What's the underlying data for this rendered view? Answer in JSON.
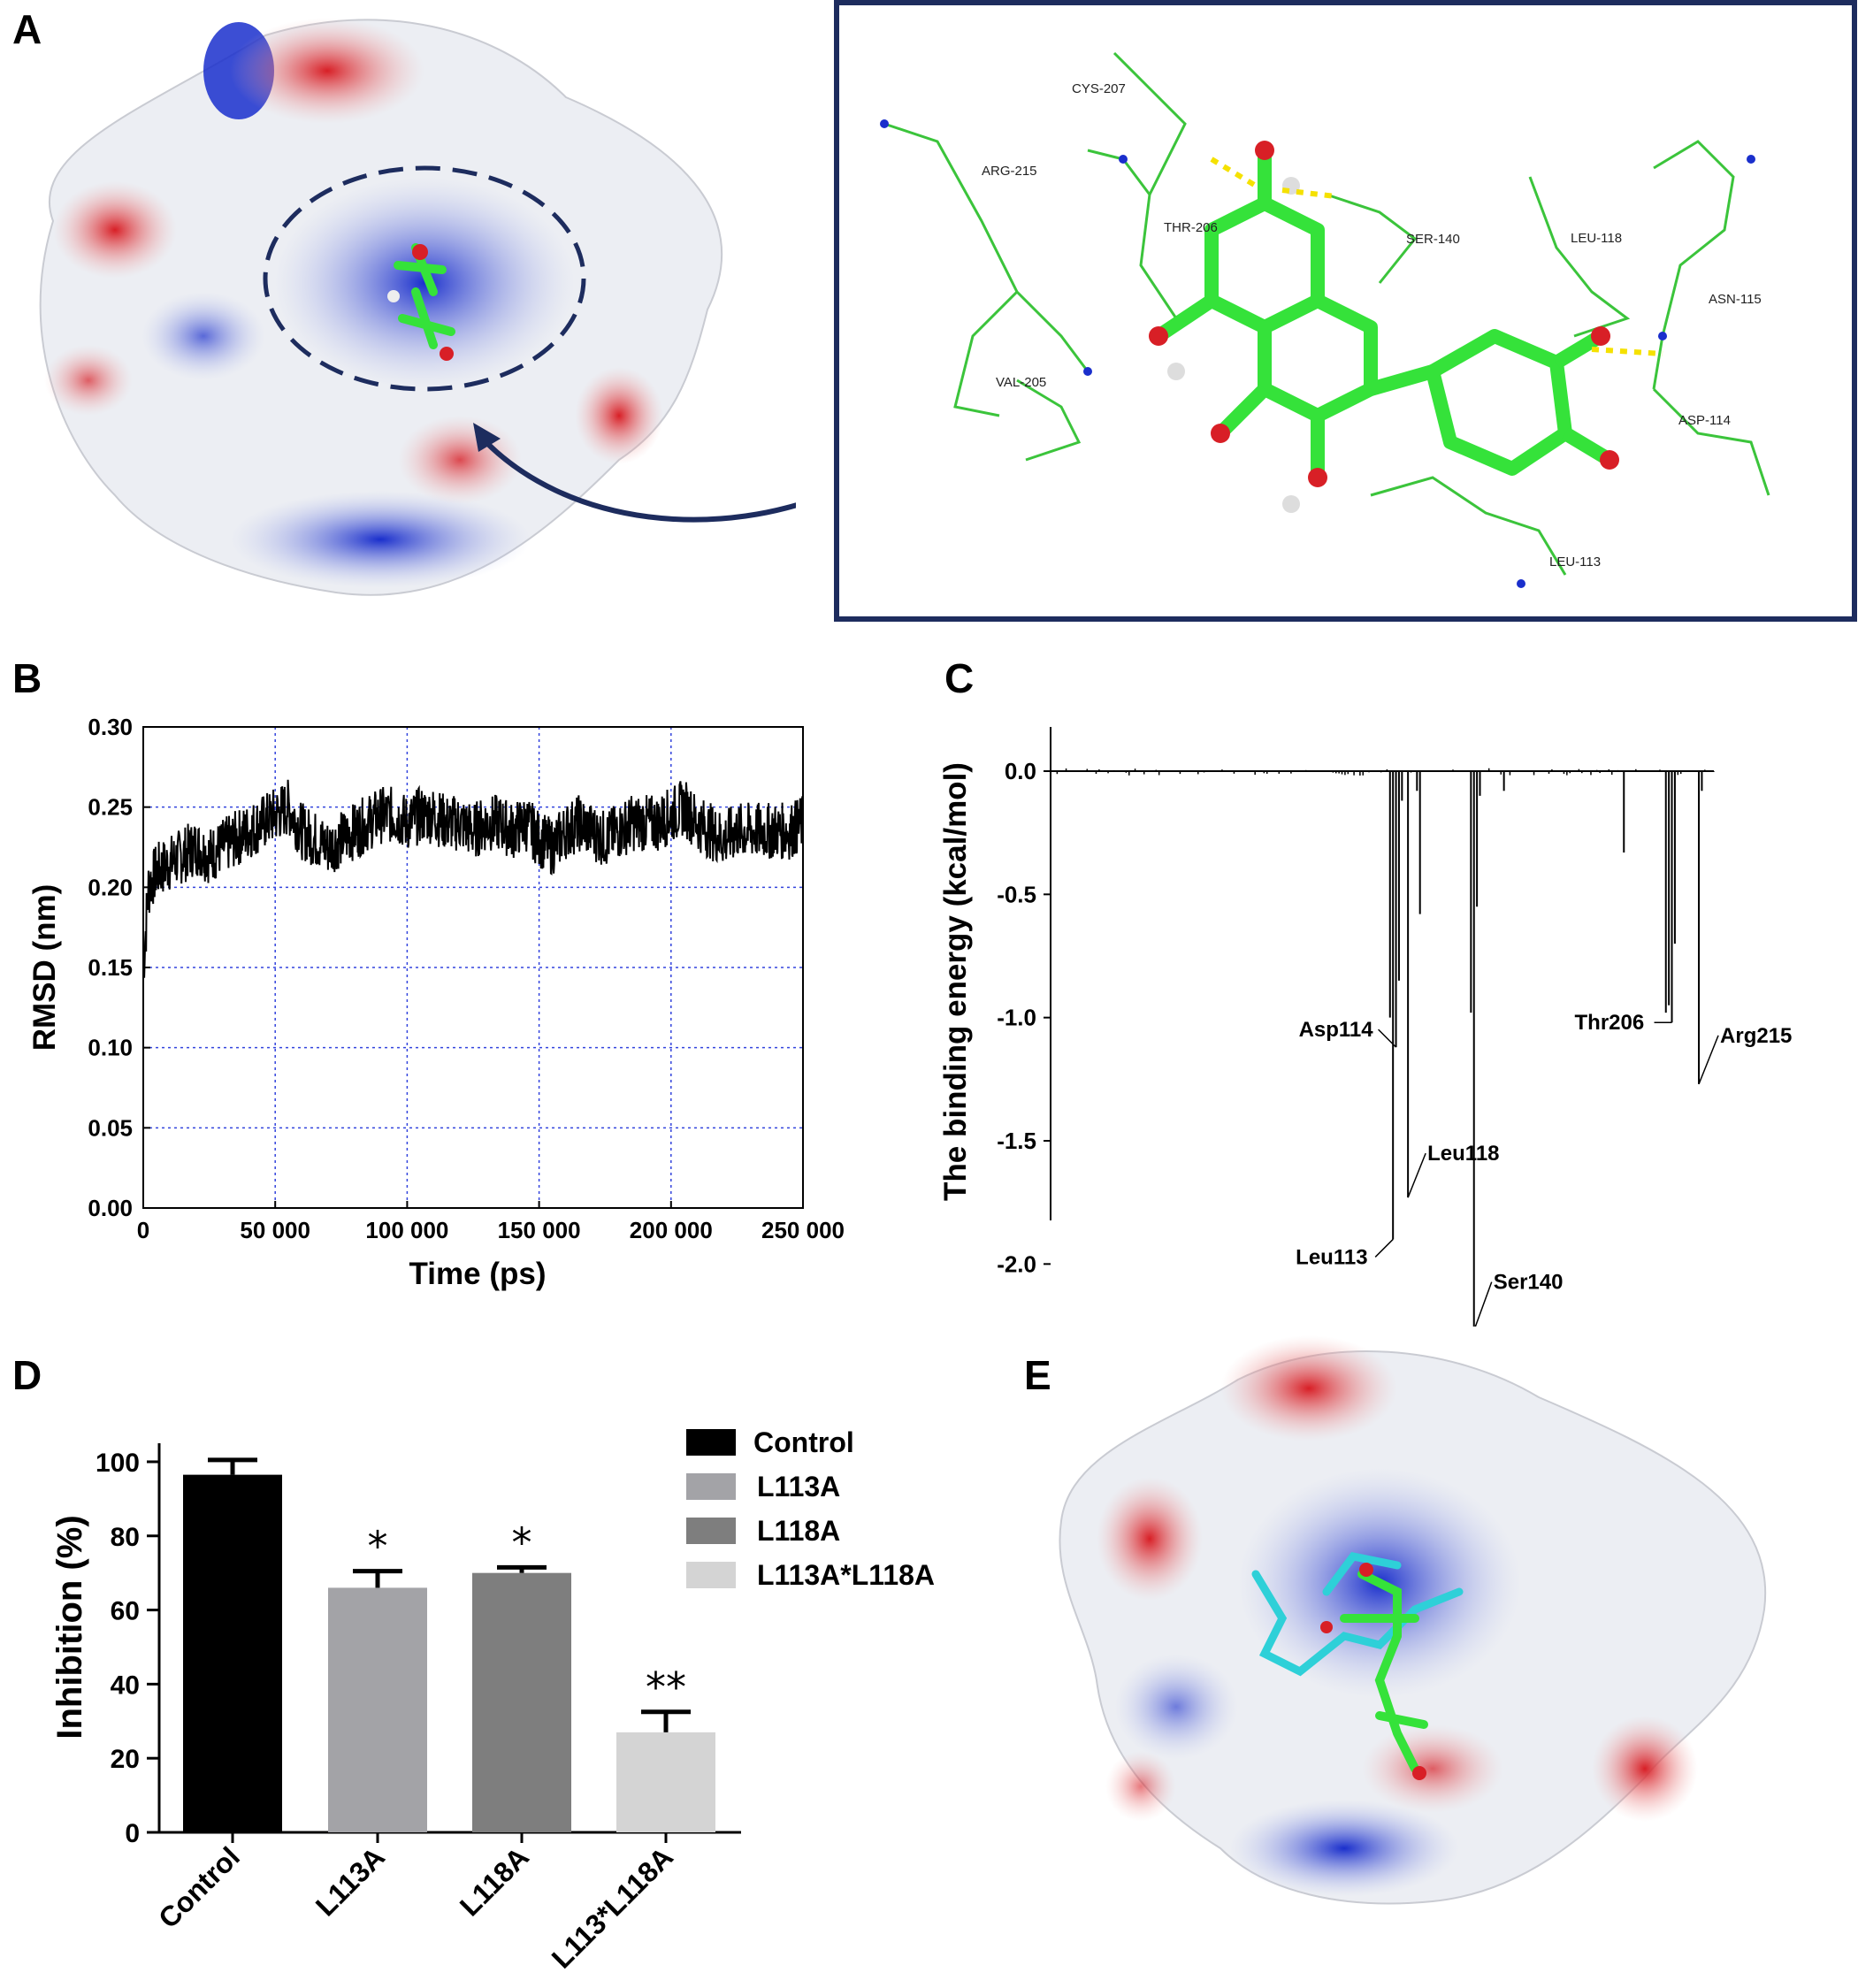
{
  "panels": {
    "a": "A",
    "b": "B",
    "c": "C",
    "d": "D",
    "e": "E"
  },
  "panel_a": {
    "residue_labels": [
      "CYS-207",
      "ARG-215",
      "THR-206",
      "SER-140",
      "LEU-118",
      "ASN-115",
      "VAL-205",
      "ASP-114",
      "LEU-113"
    ],
    "colors": {
      "positive": "#1a2fcc",
      "negative": "#d81f26",
      "neutral": "#eef0f4",
      "ligand_carbon": "#35e23a",
      "frame": "#1d2c5e"
    }
  },
  "chart_data": [
    {
      "type": "line",
      "panel": "B",
      "title": "",
      "xlabel": "Time (ps)",
      "ylabel": "RMSD (nm)",
      "xlim": [
        0,
        250000
      ],
      "ylim": [
        0,
        0.3
      ],
      "x_ticks": [
        "0",
        "50 000",
        "100 000",
        "150 000",
        "200 000",
        "250 000"
      ],
      "y_ticks": [
        "0.00",
        "0.05",
        "0.10",
        "0.15",
        "0.20",
        "0.25",
        "0.30"
      ],
      "grid": true,
      "series": [
        {
          "color": "#000000",
          "x": [
            0,
            2000,
            5000,
            10000,
            15000,
            20000,
            25000,
            30000,
            35000,
            40000,
            45000,
            50000,
            55000,
            60000,
            65000,
            70000,
            75000,
            80000,
            85000,
            90000,
            95000,
            100000,
            105000,
            110000,
            115000,
            120000,
            125000,
            130000,
            135000,
            140000,
            145000,
            150000,
            155000,
            160000,
            165000,
            170000,
            175000,
            180000,
            185000,
            190000,
            195000,
            200000,
            205000,
            210000,
            215000,
            220000,
            225000,
            230000,
            235000,
            240000,
            245000,
            250000
          ],
          "y": [
            0.15,
            0.2,
            0.21,
            0.215,
            0.22,
            0.225,
            0.22,
            0.225,
            0.23,
            0.235,
            0.24,
            0.245,
            0.25,
            0.235,
            0.23,
            0.225,
            0.23,
            0.235,
            0.24,
            0.245,
            0.245,
            0.24,
            0.245,
            0.245,
            0.24,
            0.24,
            0.235,
            0.24,
            0.24,
            0.235,
            0.24,
            0.23,
            0.225,
            0.235,
            0.24,
            0.235,
            0.23,
            0.235,
            0.24,
            0.24,
            0.24,
            0.245,
            0.25,
            0.24,
            0.235,
            0.23,
            0.235,
            0.235,
            0.235,
            0.235,
            0.235,
            0.24
          ]
        }
      ]
    },
    {
      "type": "bar",
      "panel": "C",
      "title": "",
      "xlabel": "",
      "ylabel": "The binding energy (kcal/mol)",
      "ylim": [
        -2.4,
        0.15
      ],
      "y_ticks": [
        "0.0",
        "-0.5",
        "-1.0",
        "-1.5",
        "-2.0"
      ],
      "n_residues": 220,
      "bars": [
        {
          "residue": 112,
          "value": -1.0
        },
        {
          "residue": 113,
          "value": -1.9
        },
        {
          "residue": 114,
          "value": -1.12
        },
        {
          "residue": 115,
          "value": -0.85
        },
        {
          "residue": 116,
          "value": -0.12
        },
        {
          "residue": 118,
          "value": -1.73
        },
        {
          "residue": 121,
          "value": -0.08
        },
        {
          "residue": 122,
          "value": -0.58
        },
        {
          "residue": 139,
          "value": -0.98
        },
        {
          "residue": 140,
          "value": -2.27
        },
        {
          "residue": 141,
          "value": -0.55
        },
        {
          "residue": 142,
          "value": -0.1
        },
        {
          "residue": 150,
          "value": -0.08
        },
        {
          "residue": 190,
          "value": -0.33
        },
        {
          "residue": 204,
          "value": -0.98
        },
        {
          "residue": 205,
          "value": -0.95
        },
        {
          "residue": 206,
          "value": -1.02
        },
        {
          "residue": 207,
          "value": -0.7
        },
        {
          "residue": 215,
          "value": -1.27
        },
        {
          "residue": 216,
          "value": -0.08
        }
      ],
      "annotations": [
        {
          "label": "Asp114",
          "residue": 114,
          "value": -1.12
        },
        {
          "label": "Leu113",
          "residue": 113,
          "value": -1.9
        },
        {
          "label": "Leu118",
          "residue": 118,
          "value": -1.73
        },
        {
          "label": "Ser140",
          "residue": 140,
          "value": -2.27
        },
        {
          "label": "Thr206",
          "residue": 206,
          "value": -1.02
        },
        {
          "label": "Arg215",
          "residue": 215,
          "value": -1.27
        }
      ]
    },
    {
      "type": "bar",
      "panel": "D",
      "title": "",
      "xlabel": "",
      "ylabel": "Inhibition (%)",
      "ylim": [
        0,
        100
      ],
      "y_ticks": [
        "0",
        "20",
        "40",
        "60",
        "80",
        "100"
      ],
      "categories": [
        "Control",
        "L113A",
        "L118A",
        "L113*L118A"
      ],
      "values": [
        96.5,
        66,
        70,
        27
      ],
      "errors": [
        4,
        4.5,
        1.5,
        5.5
      ],
      "significance": [
        "",
        "*",
        "*",
        "**"
      ],
      "colors": [
        "#000000",
        "#a3a3a7",
        "#7e7e7e",
        "#d4d4d4"
      ],
      "legend": [
        "Control",
        "L113A",
        "L118A",
        "L113A*L118A"
      ],
      "legend_position": "top-right"
    }
  ]
}
